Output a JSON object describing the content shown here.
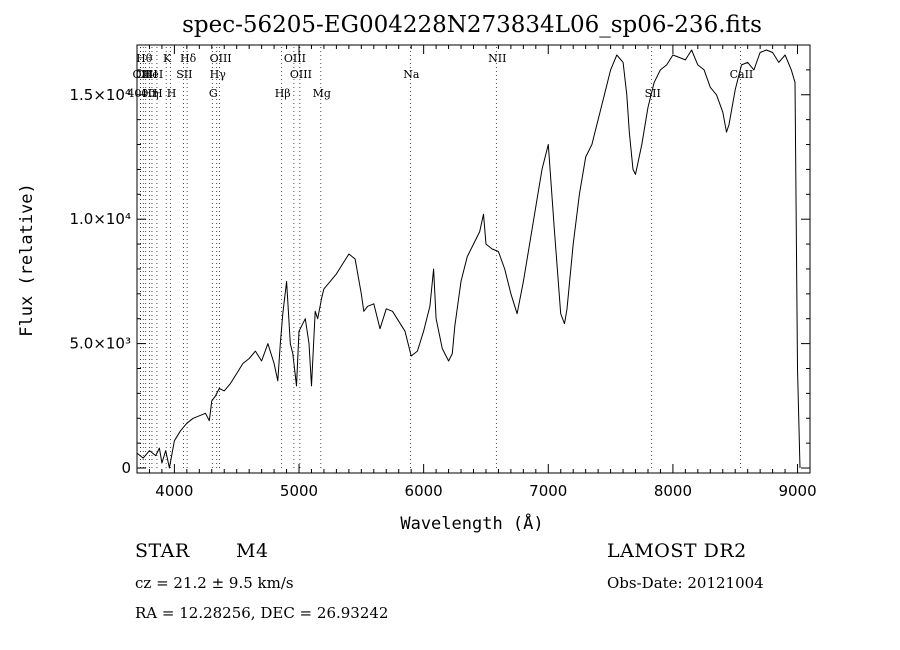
{
  "chart_data": {
    "type": "line",
    "title": "spec-56205-EG004228N273834L06_sp06-236.fits",
    "xlabel": "Wavelength (Å)",
    "ylabel": "Flux (relative)",
    "xlim": [
      3700,
      9100
    ],
    "ylim": [
      -200,
      17000
    ],
    "grid": false,
    "legend": "none",
    "x_ticks": [
      {
        "value": 4000,
        "label": "4000"
      },
      {
        "value": 5000,
        "label": "5000"
      },
      {
        "value": 6000,
        "label": "6000"
      },
      {
        "value": 7000,
        "label": "7000"
      },
      {
        "value": 8000,
        "label": "8000"
      },
      {
        "value": 9000,
        "label": "9000"
      }
    ],
    "y_ticks": [
      {
        "value": 0,
        "label": "0"
      },
      {
        "value": 5000,
        "label": "5.0×10³"
      },
      {
        "value": 10000,
        "label": "1.0×10⁴"
      },
      {
        "value": 15000,
        "label": "1.5×10⁴"
      }
    ],
    "series": [
      {
        "color": "#000000",
        "x": [
          3700,
          3750,
          3800,
          3850,
          3880,
          3900,
          3930,
          3960,
          4000,
          4050,
          4100,
          4150,
          4200,
          4250,
          4280,
          4300,
          4330,
          4360,
          4400,
          4450,
          4500,
          4550,
          4600,
          4650,
          4700,
          4750,
          4800,
          4830,
          4850,
          4870,
          4900,
          4930,
          4950,
          4980,
          5000,
          5050,
          5080,
          5100,
          5130,
          5150,
          5180,
          5200,
          5250,
          5300,
          5350,
          5400,
          5450,
          5500,
          5520,
          5550,
          5600,
          5650,
          5700,
          5750,
          5800,
          5850,
          5900,
          5950,
          6000,
          6050,
          6080,
          6100,
          6150,
          6200,
          6230,
          6250,
          6300,
          6350,
          6400,
          6450,
          6480,
          6500,
          6550,
          6600,
          6650,
          6700,
          6750,
          6800,
          6850,
          6900,
          6950,
          7000,
          7050,
          7100,
          7130,
          7150,
          7200,
          7250,
          7300,
          7350,
          7400,
          7450,
          7500,
          7550,
          7600,
          7630,
          7650,
          7680,
          7700,
          7750,
          7800,
          7850,
          7900,
          7950,
          8000,
          8050,
          8100,
          8150,
          8200,
          8250,
          8300,
          8350,
          8400,
          8430,
          8450,
          8500,
          8550,
          8600,
          8650,
          8700,
          8750,
          8800,
          8850,
          8900,
          8950,
          8980,
          9000,
          9020
        ],
        "y": [
          600,
          400,
          700,
          500,
          800,
          200,
          700,
          0,
          1100,
          1500,
          1800,
          2000,
          2100,
          2200,
          1900,
          2700,
          2900,
          3200,
          3100,
          3400,
          3800,
          4200,
          4400,
          4700,
          4300,
          5000,
          4200,
          3500,
          5000,
          6200,
          7500,
          5000,
          4600,
          3300,
          5500,
          6000,
          5000,
          3300,
          6300,
          6000,
          6800,
          7200,
          7500,
          7800,
          8200,
          8600,
          8400,
          7000,
          6300,
          6500,
          6600,
          5600,
          6400,
          6300,
          5900,
          5500,
          4500,
          4700,
          5500,
          6500,
          8000,
          6000,
          4800,
          4300,
          4600,
          5700,
          7500,
          8500,
          9000,
          9500,
          10200,
          9000,
          8800,
          8700,
          8000,
          7000,
          6200,
          7500,
          9000,
          10500,
          12000,
          13000,
          9500,
          6200,
          5800,
          6400,
          9000,
          11000,
          12500,
          13000,
          14000,
          15000,
          16000,
          16600,
          16300,
          15000,
          13500,
          12000,
          11800,
          13000,
          14500,
          15500,
          16000,
          16200,
          16600,
          16500,
          16400,
          16800,
          16200,
          16000,
          15300,
          15000,
          14300,
          13500,
          13800,
          15200,
          16200,
          16300,
          16000,
          16700,
          16800,
          16700,
          16300,
          16600,
          16000,
          15500,
          4000,
          0
        ]
      }
    ],
    "line_markers": [
      {
        "value": 3750,
        "label": "Hθ",
        "row": 1
      },
      {
        "value": 3727,
        "label": "OII",
        "row": 2
      },
      {
        "value": 3727,
        "label": "4000",
        "row": 3
      },
      {
        "value": 3770,
        "label": "OIII",
        "row": 2
      },
      {
        "value": 3800,
        "label": "Hη",
        "row": 3
      },
      {
        "value": 3820,
        "label": "HeI",
        "row": 2
      },
      {
        "value": 3860,
        "label": "H",
        "row": 3
      },
      {
        "value": 3934,
        "label": "K",
        "row": 1
      },
      {
        "value": 3969,
        "label": "H",
        "row": 3
      },
      {
        "value": 4072,
        "label": "SII",
        "row": 2
      },
      {
        "value": 4102,
        "label": "Hδ",
        "row": 1
      },
      {
        "value": 4304,
        "label": "G",
        "row": 3
      },
      {
        "value": 4340,
        "label": "Hγ",
        "row": 2
      },
      {
        "value": 4363,
        "label": "OIII",
        "row": 1
      },
      {
        "value": 4861,
        "label": "Hβ",
        "row": 3
      },
      {
        "value": 4959,
        "label": "OIII",
        "row": 1
      },
      {
        "value": 5007,
        "label": "OIII",
        "row": 2
      },
      {
        "value": 5175,
        "label": "Mg",
        "row": 3
      },
      {
        "value": 5893,
        "label": "Na",
        "row": 2
      },
      {
        "value": 6583,
        "label": "NII",
        "row": 1
      },
      {
        "value": 7830,
        "label": "SII",
        "row": 3
      },
      {
        "value": 8542,
        "label": "CaII",
        "row": 2
      }
    ]
  },
  "info": {
    "object_class": "STAR",
    "subclass": "M4",
    "cz": "cz = 21.2 ± 9.5 km/s",
    "coords": "RA =  12.28256, DEC =  26.93242",
    "survey": "LAMOST DR2",
    "obs_date": "Obs-Date: 20121004"
  }
}
